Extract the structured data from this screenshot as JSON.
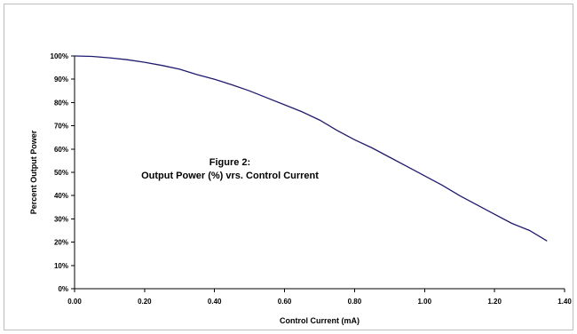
{
  "chart_data": {
    "type": "line",
    "title_line1": "Figure 2:",
    "title_line2": "Output Power (%) vrs. Control Current",
    "xlabel": "Control Current (mA)",
    "ylabel": "Percent Output Power",
    "xlim": [
      0,
      1.4
    ],
    "ylim": [
      0,
      100
    ],
    "grid": false,
    "legend": "none",
    "x_ticks": [
      0,
      0.2,
      0.4,
      0.6,
      0.8,
      1.0,
      1.2,
      1.4
    ],
    "x_tick_labels": [
      "0.00",
      "0.20",
      "0.40",
      "0.60",
      "0.80",
      "1.00",
      "1.20",
      "1.40"
    ],
    "y_ticks": [
      0,
      10,
      20,
      30,
      40,
      50,
      60,
      70,
      80,
      90,
      100
    ],
    "y_tick_labels": [
      "0%",
      "10%",
      "20%",
      "30%",
      "40%",
      "50%",
      "60%",
      "70%",
      "80%",
      "90%",
      "100%"
    ],
    "series": [
      {
        "color": "#1f1a6e",
        "x": [
          0.0,
          0.05,
          0.1,
          0.15,
          0.2,
          0.25,
          0.3,
          0.35,
          0.4,
          0.45,
          0.5,
          0.55,
          0.6,
          0.65,
          0.7,
          0.75,
          0.8,
          0.85,
          0.9,
          0.95,
          1.0,
          1.05,
          1.1,
          1.15,
          1.2,
          1.25,
          1.3,
          1.35
        ],
        "y": [
          100,
          99.8,
          99.2,
          98.4,
          97.3,
          95.9,
          94.3,
          92.0,
          90.0,
          87.6,
          85.0,
          82.0,
          79.0,
          76.0,
          72.5,
          68.0,
          64.0,
          60.5,
          56.5,
          52.5,
          48.5,
          44.5,
          40.0,
          36.0,
          32.0,
          28.0,
          25.0,
          20.5
        ]
      }
    ]
  }
}
